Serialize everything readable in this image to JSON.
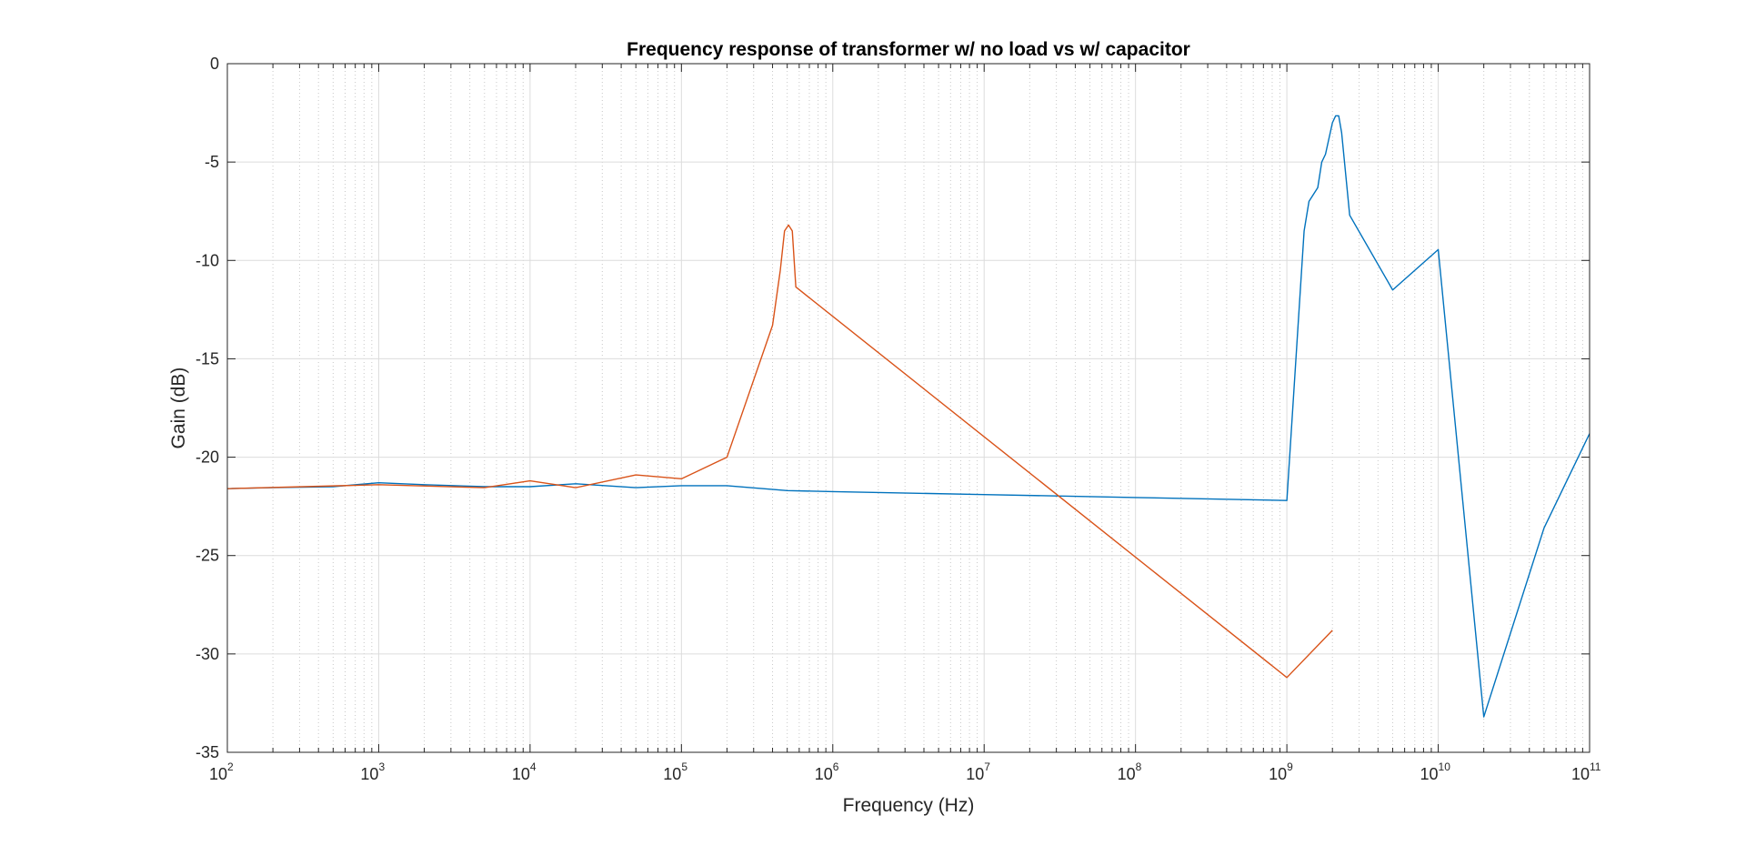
{
  "chart_data": {
    "type": "line",
    "title": "Frequency response of transformer w/ no load vs w/ capacitor",
    "xlabel": "Frequency (Hz)",
    "ylabel": "Gain (dB)",
    "xscale": "log",
    "xlim": [
      100,
      100000000000
    ],
    "ylim": [
      -35,
      0
    ],
    "grid": true,
    "minor_grid": true,
    "x_tick_labels": [
      {
        "value": 100,
        "base": "10",
        "exp": "2"
      },
      {
        "value": 1000,
        "base": "10",
        "exp": "3"
      },
      {
        "value": 10000,
        "base": "10",
        "exp": "4"
      },
      {
        "value": 100000,
        "base": "10",
        "exp": "5"
      },
      {
        "value": 1000000,
        "base": "10",
        "exp": "6"
      },
      {
        "value": 10000000,
        "base": "10",
        "exp": "7"
      },
      {
        "value": 100000000,
        "base": "10",
        "exp": "8"
      },
      {
        "value": 1000000000,
        "base": "10",
        "exp": "9"
      },
      {
        "value": 10000000000,
        "base": "10",
        "exp": "10"
      },
      {
        "value": 100000000000,
        "base": "10",
        "exp": "11"
      }
    ],
    "y_tick_labels": [
      {
        "value": 0,
        "label": "0"
      },
      {
        "value": -5,
        "label": "-5"
      },
      {
        "value": -10,
        "label": "-10"
      },
      {
        "value": -15,
        "label": "-15"
      },
      {
        "value": -20,
        "label": "-20"
      },
      {
        "value": -25,
        "label": "-25"
      },
      {
        "value": -30,
        "label": "-30"
      },
      {
        "value": -35,
        "label": "-35"
      }
    ],
    "series": [
      {
        "color": "#0072BD",
        "points": [
          [
            100,
            -21.6
          ],
          [
            200,
            -21.55
          ],
          [
            500,
            -21.5
          ],
          [
            1000,
            -21.3
          ],
          [
            2000,
            -21.4
          ],
          [
            5000,
            -21.5
          ],
          [
            10000,
            -21.5
          ],
          [
            20000,
            -21.35
          ],
          [
            50000,
            -21.55
          ],
          [
            100000,
            -21.45
          ],
          [
            200000,
            -21.45
          ],
          [
            500000,
            -21.7
          ],
          [
            1000000,
            -21.75
          ],
          [
            10000000,
            -21.9
          ],
          [
            100000000,
            -22.05
          ],
          [
            1000000000,
            -22.2
          ],
          [
            1300000000,
            -8.5
          ],
          [
            1400000000,
            -7.0
          ],
          [
            1600000000,
            -6.3
          ],
          [
            1700000000,
            -5.0
          ],
          [
            1800000000,
            -4.6
          ],
          [
            2000000000,
            -3.0
          ],
          [
            2100000000,
            -2.65
          ],
          [
            2200000000,
            -2.65
          ],
          [
            2300000000,
            -3.5
          ],
          [
            2600000000,
            -7.7
          ],
          [
            5000000000,
            -11.5
          ],
          [
            10000000000,
            -9.45
          ],
          [
            20000000000,
            -33.2
          ],
          [
            50000000000,
            -23.6
          ],
          [
            100000000000,
            -18.8
          ]
        ]
      },
      {
        "color": "#D95319",
        "points": [
          [
            100,
            -21.6
          ],
          [
            1000,
            -21.4
          ],
          [
            5000,
            -21.55
          ],
          [
            10000,
            -21.2
          ],
          [
            20000,
            -21.55
          ],
          [
            50000,
            -20.9
          ],
          [
            100000,
            -21.1
          ],
          [
            200000,
            -20.0
          ],
          [
            400000,
            -13.3
          ],
          [
            450000,
            -10.5
          ],
          [
            480000,
            -8.5
          ],
          [
            510000,
            -8.2
          ],
          [
            540000,
            -8.5
          ],
          [
            570000,
            -11.35
          ],
          [
            1000000000,
            -31.2
          ],
          [
            2000000000,
            -28.8
          ]
        ]
      }
    ]
  }
}
